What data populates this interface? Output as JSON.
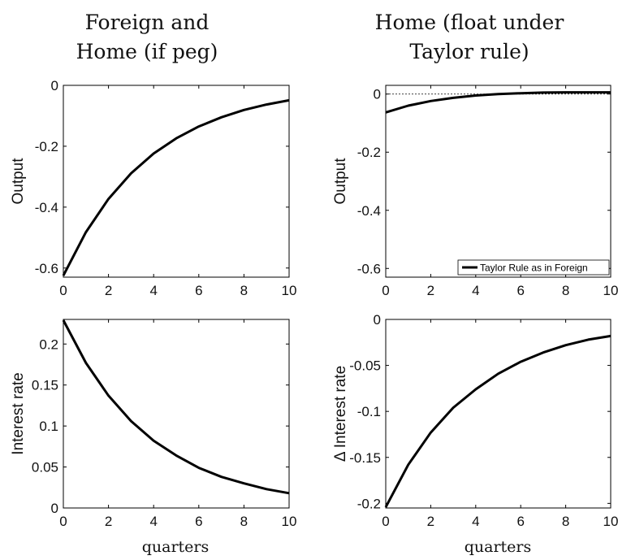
{
  "column_titles": [
    {
      "line1": "Foreign and",
      "line2": "Home (if peg)"
    },
    {
      "line1": "Home (float under",
      "line2": "Taylor rule)"
    }
  ],
  "x_axis_label": "quarters",
  "chart_data": [
    {
      "type": "line",
      "ylabel": "Output",
      "xlim": [
        0,
        10
      ],
      "ylim": [
        -0.63,
        0
      ],
      "xticks": [
        0,
        2,
        4,
        6,
        8,
        10
      ],
      "yticks": [
        -0.6,
        -0.4,
        -0.2,
        0
      ],
      "ytick_labels": [
        "-0.6",
        "-0.4",
        "-0.2",
        "0"
      ],
      "zero_line": true,
      "series": [
        {
          "x": [
            0,
            1,
            2,
            3,
            4,
            5,
            6,
            7,
            8,
            9,
            10
          ],
          "y": [
            -0.625,
            -0.482,
            -0.373,
            -0.289,
            -0.224,
            -0.174,
            -0.135,
            -0.105,
            -0.081,
            -0.063,
            -0.049
          ]
        }
      ]
    },
    {
      "type": "line",
      "ylabel": "Output",
      "xlim": [
        0,
        10
      ],
      "ylim": [
        -0.63,
        0.03
      ],
      "xticks": [
        0,
        2,
        4,
        6,
        8,
        10
      ],
      "yticks": [
        -0.6,
        -0.4,
        -0.2,
        0
      ],
      "ytick_labels": [
        "-0.6",
        "-0.4",
        "-0.2",
        "0"
      ],
      "zero_line": true,
      "legend": "bottom-right",
      "series": [
        {
          "name": "Taylor Rule as in Foreign",
          "x": [
            0,
            1,
            2,
            3,
            4,
            5,
            6,
            7,
            8,
            9,
            10
          ],
          "y": [
            -0.063,
            -0.04,
            -0.024,
            -0.013,
            -0.005,
            0.0,
            0.003,
            0.005,
            0.006,
            0.006,
            0.006
          ]
        }
      ]
    },
    {
      "type": "line",
      "ylabel": "Interest rate",
      "xlim": [
        0,
        10
      ],
      "ylim": [
        0,
        0.23
      ],
      "xticks": [
        0,
        2,
        4,
        6,
        8,
        10
      ],
      "yticks": [
        0,
        0.05,
        0.1,
        0.15,
        0.2
      ],
      "ytick_labels": [
        "0",
        "0.05",
        "0.1",
        "0.15",
        "0.2"
      ],
      "zero_line": false,
      "series": [
        {
          "x": [
            0,
            1,
            2,
            3,
            4,
            5,
            6,
            7,
            8,
            9,
            10
          ],
          "y": [
            0.229,
            0.177,
            0.137,
            0.106,
            0.082,
            0.064,
            0.049,
            0.038,
            0.03,
            0.023,
            0.018
          ]
        }
      ]
    },
    {
      "type": "line",
      "ylabel": "Δ Interest rate",
      "xlim": [
        0,
        10
      ],
      "ylim": [
        -0.205,
        0
      ],
      "xticks": [
        0,
        2,
        4,
        6,
        8,
        10
      ],
      "yticks": [
        -0.2,
        -0.15,
        -0.1,
        -0.05,
        0
      ],
      "ytick_labels": [
        "-0.2",
        "-0.15",
        "-0.1",
        "-0.05",
        "0"
      ],
      "zero_line": true,
      "series": [
        {
          "x": [
            0,
            1,
            2,
            3,
            4,
            5,
            6,
            7,
            8,
            9,
            10
          ],
          "y": [
            -0.204,
            -0.158,
            -0.123,
            -0.096,
            -0.076,
            -0.059,
            -0.046,
            -0.036,
            -0.028,
            -0.022,
            -0.018
          ]
        }
      ]
    }
  ]
}
